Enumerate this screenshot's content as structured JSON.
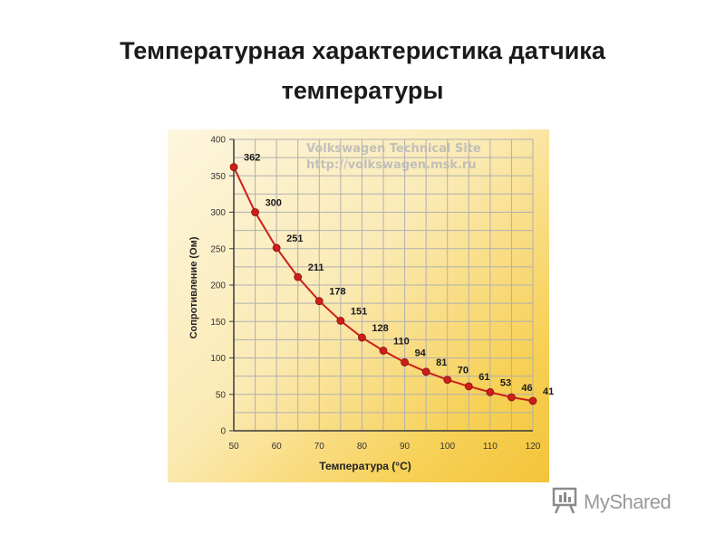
{
  "slide": {
    "title_line1": "Температурная характеристика датчика",
    "title_line2": "температуры"
  },
  "watermark": {
    "line1": "Volkswagen Technical Site",
    "line2": "http://volkswagen.msk.ru"
  },
  "footer": {
    "logo_text": "MyShared"
  },
  "colors": {
    "series": "#cc1f1a",
    "grid": "#b0b0b0",
    "axis": "#3a3a3a"
  },
  "chart_data": {
    "type": "line",
    "title": "",
    "xlabel": "Температура (°С)",
    "ylabel": "Сопротивление (Ом)",
    "xlim": [
      50,
      120
    ],
    "ylim": [
      0,
      400
    ],
    "x_ticks": [
      50,
      60,
      70,
      80,
      90,
      100,
      110,
      120
    ],
    "y_ticks": [
      0,
      50,
      100,
      150,
      200,
      250,
      300,
      350,
      400
    ],
    "grid": true,
    "x": [
      50,
      55,
      60,
      65,
      70,
      75,
      80,
      85,
      90,
      95,
      100,
      105,
      110,
      115,
      120
    ],
    "y": [
      362,
      300,
      251,
      211,
      178,
      151,
      128,
      110,
      94,
      81,
      70,
      61,
      53,
      46,
      41
    ],
    "data_labels": [
      "362",
      "300",
      "251",
      "211",
      "178",
      "151",
      "128",
      "110",
      "94",
      "81",
      "70",
      "61",
      "53",
      "46",
      "41"
    ]
  }
}
